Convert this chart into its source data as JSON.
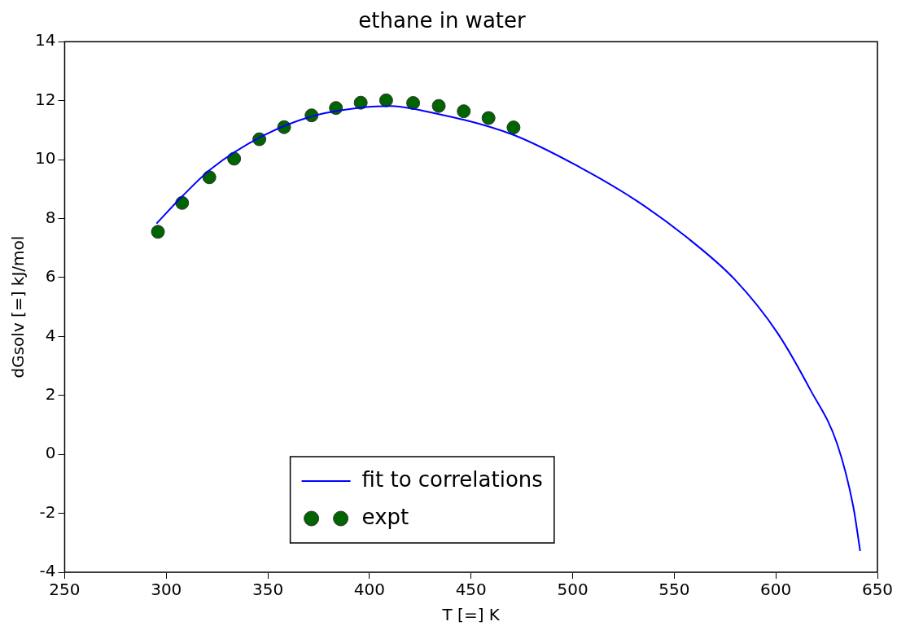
{
  "chart_data": {
    "type": "line",
    "title": "ethane in water",
    "xlabel": "T [=] K",
    "ylabel": "dGsolv [=] kJ/mol",
    "xlim": [
      250,
      650
    ],
    "xticks": [
      250,
      300,
      350,
      400,
      450,
      500,
      550,
      600,
      650
    ],
    "ylim": [
      -4,
      14
    ],
    "yticks": [
      -4,
      -2,
      0,
      2,
      4,
      6,
      8,
      10,
      12,
      14
    ],
    "grid": false,
    "legend": "bottom",
    "series": [
      {
        "name": "fit to correlations",
        "color": "#0000ff",
        "marker": "none",
        "line_style": "solid",
        "x": [
          295.2,
          307.8,
          321.8,
          347.1,
          371.2,
          396.5,
          410.4,
          426.1,
          470.4,
          503.8,
          531.3,
          555.3,
          579.8,
          600.9,
          617.0,
          630.1,
          638.1,
          641.5
        ],
        "values": [
          7.83,
          8.75,
          9.67,
          10.79,
          11.46,
          11.77,
          11.82,
          11.66,
          10.85,
          9.73,
          8.61,
          7.41,
          5.93,
          4.11,
          2.19,
          0.37,
          -1.77,
          -3.28
        ]
      },
      {
        "name": "expt",
        "type": "scatter",
        "color": "#006400",
        "marker": "circle",
        "x": [
          295.9,
          307.8,
          321.2,
          333.4,
          345.8,
          358.0,
          371.5,
          383.5,
          395.7,
          408.2,
          421.5,
          434.1,
          446.4,
          458.6,
          470.9
        ],
        "values": [
          7.55,
          8.53,
          9.4,
          10.03,
          10.69,
          11.1,
          11.5,
          11.75,
          11.93,
          12.01,
          11.92,
          11.82,
          11.64,
          11.41,
          11.09
        ]
      }
    ]
  }
}
